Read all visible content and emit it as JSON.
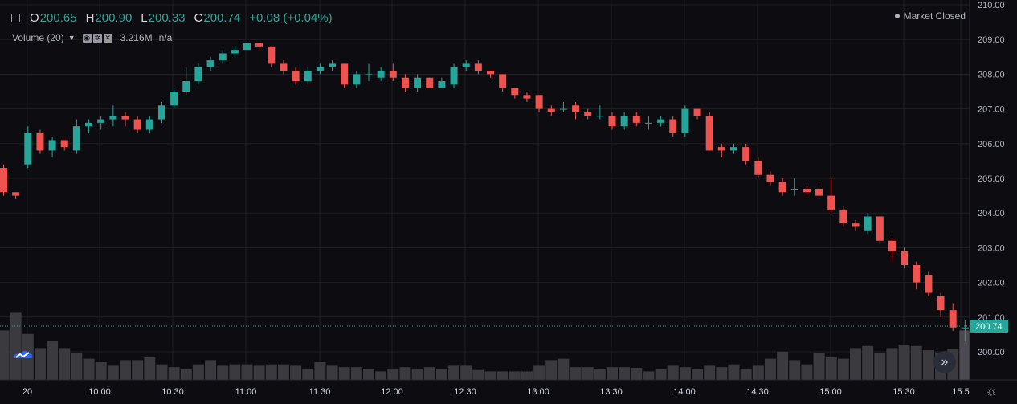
{
  "legend": {
    "o_label": "O",
    "o_value": "200.65",
    "h_label": "H",
    "h_value": "200.90",
    "l_label": "L",
    "l_value": "200.33",
    "c_label": "C",
    "c_value": "200.74",
    "change": "+0.08 (+0.04%)"
  },
  "volume_indicator": {
    "label": "Volume (20)",
    "value": "3.216M",
    "na": "n/a"
  },
  "market_status": "Market Closed",
  "icons": {
    "toggle": "collapse-legend-icon",
    "eye": "eye-icon",
    "settings": "gear-icon",
    "close": "close-icon",
    "logo": "tradingview-logo-icon",
    "scroll": "double-chevron-right-icon",
    "time_settings": "gear-icon"
  },
  "colors": {
    "up": "#26a69a",
    "down": "#ef5350",
    "volume": "#3a3a3f",
    "volume_last": "#4a4a50",
    "grid": "#1e1e24",
    "price_line": "#26a69a"
  },
  "chart_data": {
    "type": "candlestick",
    "y_axis": {
      "min": 199.8,
      "max": 210.0,
      "ticks": [
        "210.00",
        "209.00",
        "208.00",
        "207.00",
        "206.00",
        "205.00",
        "204.00",
        "203.00",
        "202.00",
        "201.00",
        "200.00"
      ],
      "position": "right"
    },
    "x_axis": {
      "ticks": [
        "20",
        "10:00",
        "10:30",
        "11:00",
        "11:30",
        "12:00",
        "12:30",
        "13:00",
        "13:30",
        "14:00",
        "14:30",
        "15:00",
        "15:30",
        "15:5"
      ]
    },
    "last_price": "200.74",
    "grid": true,
    "candles": [
      [
        205.3,
        204.6,
        205.4,
        204.5
      ],
      [
        204.6,
        204.5,
        204.6,
        204.4
      ],
      [
        205.4,
        206.3,
        206.5,
        205.3
      ],
      [
        206.3,
        205.8,
        206.4,
        205.7
      ],
      [
        205.8,
        206.1,
        206.2,
        205.6
      ],
      [
        206.1,
        205.9,
        206.1,
        205.8
      ],
      [
        205.8,
        206.5,
        206.7,
        205.7
      ],
      [
        206.5,
        206.6,
        206.7,
        206.3
      ],
      [
        206.6,
        206.7,
        206.8,
        206.4
      ],
      [
        206.7,
        206.8,
        207.1,
        206.5
      ],
      [
        206.8,
        206.7,
        206.9,
        206.5
      ],
      [
        206.7,
        206.4,
        206.8,
        206.3
      ],
      [
        206.4,
        206.7,
        206.8,
        206.3
      ],
      [
        206.7,
        207.1,
        207.2,
        206.6
      ],
      [
        207.1,
        207.5,
        207.6,
        207.0
      ],
      [
        207.5,
        207.8,
        208.2,
        207.4
      ],
      [
        207.8,
        208.2,
        208.3,
        207.7
      ],
      [
        208.2,
        208.4,
        208.5,
        208.1
      ],
      [
        208.4,
        208.6,
        208.7,
        208.3
      ],
      [
        208.6,
        208.7,
        208.8,
        208.5
      ],
      [
        208.7,
        208.9,
        209.0,
        208.7
      ],
      [
        208.9,
        208.8,
        208.9,
        208.7
      ],
      [
        208.8,
        208.3,
        208.8,
        208.2
      ],
      [
        208.3,
        208.1,
        208.4,
        208.0
      ],
      [
        208.1,
        207.8,
        208.2,
        207.7
      ],
      [
        207.8,
        208.1,
        208.2,
        207.7
      ],
      [
        208.1,
        208.2,
        208.3,
        208.0
      ],
      [
        208.2,
        208.3,
        208.4,
        208.1
      ],
      [
        208.3,
        207.7,
        208.3,
        207.6
      ],
      [
        207.7,
        208.0,
        208.1,
        207.6
      ],
      [
        208.0,
        208.0,
        208.3,
        207.8
      ],
      [
        207.9,
        208.1,
        208.2,
        207.8
      ],
      [
        208.1,
        207.9,
        208.3,
        207.8
      ],
      [
        207.9,
        207.6,
        208.0,
        207.5
      ],
      [
        207.6,
        207.9,
        208.0,
        207.5
      ],
      [
        207.9,
        207.6,
        207.9,
        207.6
      ],
      [
        207.6,
        207.8,
        207.9,
        207.6
      ],
      [
        207.7,
        208.2,
        208.3,
        207.6
      ],
      [
        208.2,
        208.3,
        208.4,
        208.1
      ],
      [
        208.3,
        208.1,
        208.4,
        208.0
      ],
      [
        208.1,
        208.0,
        208.1,
        207.9
      ],
      [
        208.0,
        207.6,
        208.0,
        207.5
      ],
      [
        207.6,
        207.4,
        207.6,
        207.3
      ],
      [
        207.4,
        207.3,
        207.5,
        207.2
      ],
      [
        207.4,
        207.0,
        207.4,
        206.9
      ],
      [
        207.0,
        206.9,
        207.1,
        206.8
      ],
      [
        207.0,
        207.0,
        207.2,
        206.9
      ],
      [
        207.1,
        206.9,
        207.2,
        206.7
      ],
      [
        206.9,
        206.8,
        207.0,
        206.7
      ],
      [
        206.8,
        206.8,
        207.1,
        206.7
      ],
      [
        206.8,
        206.5,
        206.9,
        206.4
      ],
      [
        206.5,
        206.8,
        206.9,
        206.4
      ],
      [
        206.8,
        206.6,
        206.9,
        206.5
      ],
      [
        206.6,
        206.6,
        206.8,
        206.4
      ],
      [
        206.6,
        206.7,
        206.8,
        206.5
      ],
      [
        206.7,
        206.3,
        206.8,
        206.2
      ],
      [
        206.3,
        207.0,
        207.1,
        206.2
      ],
      [
        207.0,
        206.8,
        207.0,
        206.7
      ],
      [
        206.8,
        205.8,
        206.9,
        205.8
      ],
      [
        205.9,
        205.8,
        206.0,
        205.6
      ],
      [
        205.8,
        205.9,
        206.0,
        205.7
      ],
      [
        205.9,
        205.5,
        206.0,
        205.4
      ],
      [
        205.5,
        205.1,
        205.6,
        205.0
      ],
      [
        205.1,
        204.9,
        205.2,
        204.8
      ],
      [
        204.9,
        204.6,
        205.0,
        204.5
      ],
      [
        204.7,
        204.7,
        205.0,
        204.5
      ],
      [
        204.7,
        204.6,
        204.8,
        204.5
      ],
      [
        204.7,
        204.5,
        204.9,
        204.4
      ],
      [
        204.5,
        204.1,
        205.0,
        204.0
      ],
      [
        204.1,
        203.7,
        204.2,
        203.6
      ],
      [
        203.7,
        203.6,
        203.8,
        203.5
      ],
      [
        203.5,
        203.9,
        204.0,
        203.4
      ],
      [
        203.9,
        203.2,
        203.9,
        203.1
      ],
      [
        203.2,
        202.9,
        203.3,
        202.6
      ],
      [
        202.9,
        202.5,
        203.0,
        202.4
      ],
      [
        202.5,
        202.0,
        202.6,
        201.8
      ],
      [
        202.2,
        201.7,
        202.3,
        201.6
      ],
      [
        201.6,
        201.2,
        201.7,
        201.0
      ],
      [
        201.2,
        200.7,
        201.4,
        200.6
      ],
      [
        200.7,
        200.7,
        200.9,
        200.3
      ]
    ],
    "volume": [
      0.7,
      0.95,
      0.65,
      0.45,
      0.55,
      0.45,
      0.38,
      0.3,
      0.25,
      0.2,
      0.28,
      0.28,
      0.32,
      0.22,
      0.18,
      0.15,
      0.22,
      0.28,
      0.2,
      0.22,
      0.22,
      0.2,
      0.22,
      0.22,
      0.2,
      0.16,
      0.25,
      0.2,
      0.18,
      0.18,
      0.16,
      0.12,
      0.16,
      0.18,
      0.16,
      0.18,
      0.16,
      0.2,
      0.2,
      0.14,
      0.12,
      0.12,
      0.12,
      0.12,
      0.2,
      0.28,
      0.3,
      0.18,
      0.18,
      0.15,
      0.18,
      0.18,
      0.17,
      0.12,
      0.15,
      0.2,
      0.18,
      0.15,
      0.2,
      0.18,
      0.22,
      0.16,
      0.2,
      0.3,
      0.4,
      0.28,
      0.22,
      0.38,
      0.32,
      0.3,
      0.45,
      0.48,
      0.38,
      0.45,
      0.5,
      0.48,
      0.42,
      0.38,
      0.44,
      0.7
    ]
  }
}
